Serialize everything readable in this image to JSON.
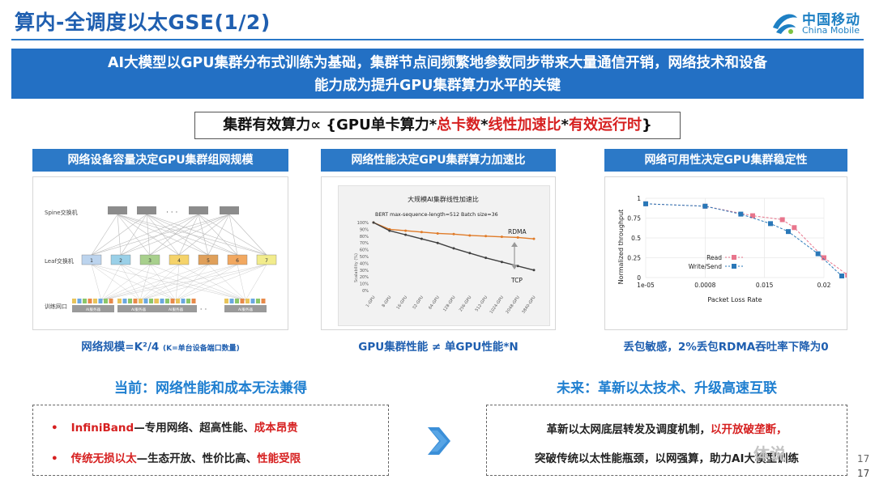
{
  "header": {
    "title": "算内-全调度以太GSE(1/2)",
    "logo_cn": "中国移动",
    "logo_en": "China Mobile"
  },
  "banner": {
    "line1": "AI大模型以GPU集群分布式训练为基础，集群节点间频繁地参数同步带来大量通信开销，网络技术和设备",
    "line2": "能力成为提升GPU集群算力水平的关键"
  },
  "formula": {
    "prefix": "集群有效算力∝ {GPU单卡算力*",
    "term2": "总卡数",
    "star2": "*",
    "term3": "线性加速比",
    "star3": "*",
    "term4": "有效运行时",
    "suffix": "}"
  },
  "panels": [
    {
      "heading": "网络设备容量决定GPU集群组网规模",
      "caption": "网络规模=K²/4",
      "caption_note": "(K=单台设备端口数量)",
      "diagram": {
        "spine_label": "Spine交换机",
        "leaf_label": "Leaf交换机",
        "server_label": "训练网口",
        "dots": "· · ·",
        "leaf_numbers": [
          "1",
          "2",
          "3",
          "4",
          "5",
          "6",
          "7"
        ],
        "server_box_label": "AI服务器"
      }
    },
    {
      "heading": "网络性能决定GPU集群算力加速比",
      "caption": "GPU集群性能 ≠ 单GPU性能*N"
    },
    {
      "heading": "网络可用性决定GPU集群稳定性",
      "caption": "丢包敏感，2%丢包RDMA吞吐率下降为0"
    }
  ],
  "chart_data": [
    {
      "type": "line",
      "title": "大规模AI集群线性加速比",
      "subtitle": "BERT max-sequence-length=512 Batch size=36",
      "ylabel": "Scalability (%)",
      "ylim": [
        0,
        100
      ],
      "yticks": [
        "0%",
        "10%",
        "20%",
        "30%",
        "40%",
        "50%",
        "60%",
        "70%",
        "80%",
        "90%",
        "100%"
      ],
      "categories": [
        "1-GPU",
        "8-GPU",
        "16-GPU",
        "32-GPU",
        "64-GPU",
        "128-GPU",
        "256-GPU",
        "512-GPU",
        "1024-GPU",
        "2048-GPU",
        "3840-GPU"
      ],
      "series": [
        {
          "name": "RDMA",
          "color": "#e07b28",
          "values": [
            100,
            90,
            88,
            86,
            84,
            83,
            81,
            80,
            79,
            78,
            76
          ]
        },
        {
          "name": "TCP",
          "color": "#404040",
          "values": [
            100,
            88,
            82,
            76,
            70,
            62,
            55,
            48,
            42,
            36,
            30
          ]
        }
      ]
    },
    {
      "type": "line",
      "ylabel": "Normalized throughput",
      "xlabel": "Packet Loss Rate",
      "xticks": [
        "1e-05",
        "0.0008",
        "0.015",
        "0.02"
      ],
      "yticks": [
        "0",
        "0.25",
        "0.5",
        "0.75",
        "1"
      ],
      "ylim": [
        0,
        1
      ],
      "legend": "center-right",
      "series": [
        {
          "name": "Read",
          "color": "#e8758c",
          "points": [
            [
              0,
              0.93
            ],
            [
              1,
              0.9
            ],
            [
              1.8,
              0.78
            ],
            [
              2.3,
              0.73
            ],
            [
              2.5,
              0.63
            ],
            [
              3,
              0.25
            ],
            [
              3.4,
              0.03
            ]
          ]
        },
        {
          "name": "Write/Send",
          "color": "#2a78b8",
          "points": [
            [
              0,
              0.93
            ],
            [
              1,
              0.9
            ],
            [
              1.6,
              0.8
            ],
            [
              2.1,
              0.68
            ],
            [
              2.4,
              0.58
            ],
            [
              2.9,
              0.3
            ],
            [
              3.3,
              0.02
            ]
          ]
        }
      ]
    }
  ],
  "current": {
    "title": "当前：网络性能和成本无法兼得",
    "bullet": "•",
    "item1_a": "InfiniBand",
    "item1_b": "—专用网络、超高性能、",
    "item1_c": "成本昂贵",
    "item2_a": "传统无损以太",
    "item2_b": "—生态开放、性价比高、",
    "item2_c": "性能受限"
  },
  "future": {
    "title": "未来：革新以太技术、升级高速互联",
    "line1_a": "革新以太网底层转发及调度机制，",
    "line1_b": "以开放破垄断，",
    "line2": "突破传统以太性能瓶颈，以网强算，助力AI大模型训练"
  },
  "watermark": "体说",
  "page_number": "17",
  "page_number2": "17"
}
